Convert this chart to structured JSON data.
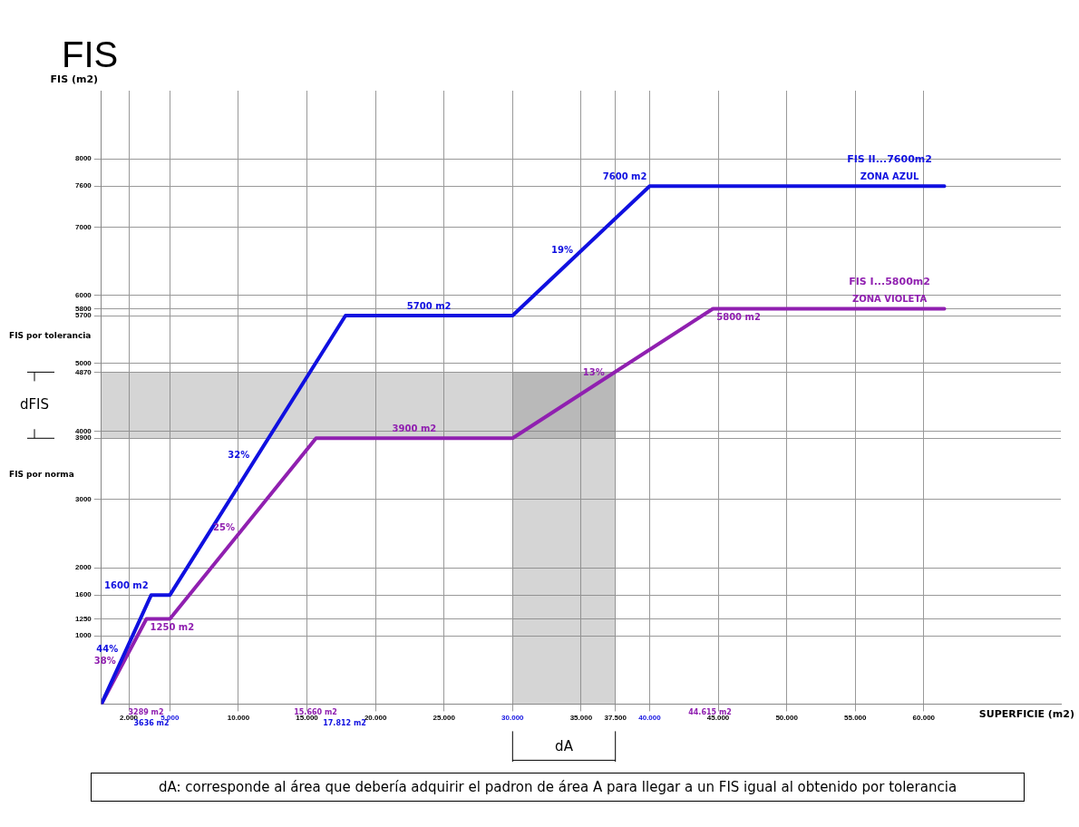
{
  "chart_data": {
    "type": "line",
    "title": "FIS",
    "xlabel": "SUPERFICIE (m2)",
    "ylabel": "FIS (m2)",
    "xlim": [
      0,
      70000
    ],
    "ylim": [
      0,
      9000
    ],
    "xticks": [
      {
        "value": 2000,
        "label": "2.000"
      },
      {
        "value": 5000,
        "label": "5.000"
      },
      {
        "value": 10000,
        "label": "10.000"
      },
      {
        "value": 15000,
        "label": "15.000"
      },
      {
        "value": 20000,
        "label": "20.000"
      },
      {
        "value": 25000,
        "label": "25.000"
      },
      {
        "value": 30000,
        "label": "30.000"
      },
      {
        "value": 35000,
        "label": "35.000"
      },
      {
        "value": 37500,
        "label": "37.500"
      },
      {
        "value": 40000,
        "label": "40.000"
      },
      {
        "value": 45000,
        "label": "45.000"
      },
      {
        "value": 50000,
        "label": "50.000"
      },
      {
        "value": 55000,
        "label": "55.000"
      },
      {
        "value": 60000,
        "label": "60.000"
      }
    ],
    "yticks": [
      1000,
      1250,
      1600,
      2000,
      3000,
      3900,
      4000,
      4870,
      5000,
      5700,
      5800,
      6000,
      7000,
      7600,
      8000
    ],
    "grid": true,
    "legend": false,
    "marker": "none",
    "line_style": "solid",
    "series": [
      {
        "name": "FIS II...7600m2",
        "color": "#1010e0",
        "x": [
          0,
          3636,
          5000,
          17812,
          30000,
          40000,
          61500
        ],
        "values": [
          0,
          1600,
          1600,
          5700,
          5700,
          7600,
          7600
        ]
      },
      {
        "name": "FIS I...5800m2",
        "color": "#9020b0",
        "x": [
          0,
          3289,
          5000,
          15660,
          30000,
          44615,
          61500
        ],
        "values": [
          0,
          1250,
          1250,
          3900,
          3900,
          5800,
          5800
        ]
      }
    ],
    "bands": [
      {
        "axis": "y",
        "from": 3900,
        "to": 4870,
        "color": "#888888"
      },
      {
        "axis": "x",
        "from": 30000,
        "to": 37500,
        "color": "#888888"
      }
    ],
    "annotations": [
      {
        "text": "ZONA AZUL",
        "x": 57500,
        "y": 7600
      },
      {
        "text": "ZONA VIOLETA",
        "x": 57500,
        "y": 5800
      },
      {
        "text": "1600 m2",
        "x": 3636,
        "y": 1600
      },
      {
        "text": "1250 m2",
        "x": 3289,
        "y": 1250
      },
      {
        "text": "5700 m2",
        "x": 23906,
        "y": 5700
      },
      {
        "text": "3900 m2",
        "x": 22830,
        "y": 3900
      },
      {
        "text": "7600 m2",
        "x": 40000,
        "y": 7600
      },
      {
        "text": "5800 m2",
        "x": 44615,
        "y": 5800
      },
      {
        "text": "44%",
        "x": 1818,
        "y": 800
      },
      {
        "text": "38%",
        "x": 1644.5,
        "y": 625
      },
      {
        "text": "32%",
        "x": 11406,
        "y": 3650
      },
      {
        "text": "25%",
        "x": 10330,
        "y": 2575
      },
      {
        "text": "19%",
        "x": 35000,
        "y": 6650
      },
      {
        "text": "13%",
        "x": 37307.5,
        "y": 4850
      },
      "FIS por tolerancia",
      "FIS por norma",
      "dFIS",
      "3289 m2",
      "3636 m2",
      "15.660 m2",
      "17.812 m2",
      "44.615 m2",
      "dA",
      "dA: corresponde al área que debería adquirir el padron de área A para llegar a un FIS igual al obtenido por tolerancia"
    ]
  }
}
